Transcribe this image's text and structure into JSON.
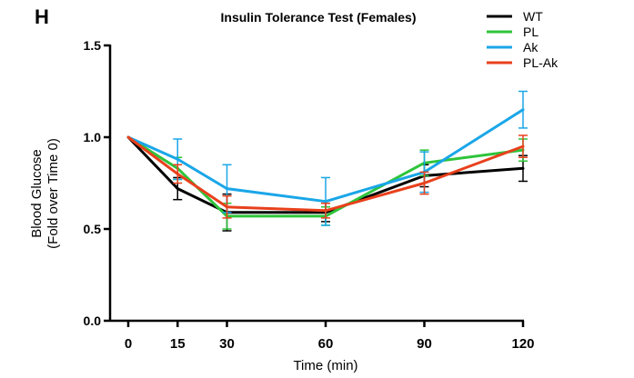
{
  "panel_label": "H",
  "chart_data": {
    "type": "line",
    "title": "Insulin Tolerance Test (Females)",
    "xlabel": "Time (min)",
    "ylabel_line1": "Blood Glucose",
    "ylabel_line2": "(Fold over Time 0)",
    "x": [
      0,
      15,
      30,
      60,
      90,
      120
    ],
    "x_ticks": [
      "0",
      "15",
      "30",
      "60",
      "90",
      "120"
    ],
    "y_ticks": [
      "0.0",
      "0.5",
      "1.0",
      "1.5"
    ],
    "xlim": [
      0,
      120
    ],
    "ylim": [
      0,
      1.5
    ],
    "grid": false,
    "legend_position": "top-right",
    "series": [
      {
        "name": "WT",
        "color": "#000000",
        "values": [
          1.0,
          0.72,
          0.59,
          0.59,
          0.79,
          0.83
        ],
        "err": [
          0,
          0.06,
          0.1,
          0.05,
          0.06,
          0.07
        ]
      },
      {
        "name": "PL",
        "color": "#2ec43a",
        "values": [
          1.0,
          0.83,
          0.57,
          0.57,
          0.86,
          0.93
        ],
        "err": [
          0,
          0.06,
          0.07,
          0.05,
          0.07,
          0.06
        ]
      },
      {
        "name": "Ak",
        "color": "#1aa6e8",
        "values": [
          1.0,
          0.88,
          0.72,
          0.65,
          0.81,
          1.15
        ],
        "err": [
          0,
          0.11,
          0.13,
          0.13,
          0.11,
          0.1
        ]
      },
      {
        "name": "PL-Ak",
        "color": "#e8401c",
        "values": [
          1.0,
          0.8,
          0.62,
          0.6,
          0.75,
          0.95
        ],
        "err": [
          0,
          0.05,
          0.06,
          0.04,
          0.06,
          0.06
        ]
      }
    ]
  }
}
